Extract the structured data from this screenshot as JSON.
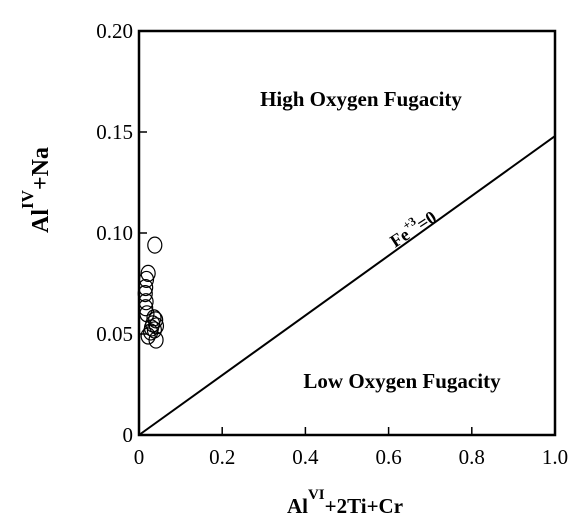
{
  "chart_data": {
    "type": "scatter",
    "xlim": [
      0,
      1.0
    ],
    "ylim": [
      0,
      0.2
    ],
    "xticks": [
      {
        "value": 0,
        "label": "0"
      },
      {
        "value": 0.2,
        "label": "0.2"
      },
      {
        "value": 0.4,
        "label": "0.4"
      },
      {
        "value": 0.6,
        "label": "0.6"
      },
      {
        "value": 0.8,
        "label": "0.8"
      },
      {
        "value": 1.0,
        "label": "1.0"
      }
    ],
    "yticks": [
      {
        "value": 0,
        "label": "0"
      },
      {
        "value": 0.05,
        "label": "0.05"
      },
      {
        "value": 0.1,
        "label": "0.10"
      },
      {
        "value": 0.15,
        "label": "0.15"
      },
      {
        "value": 0.2,
        "label": "0.20"
      }
    ],
    "xlabel": {
      "base": "Al",
      "sup": "VI",
      "rest": "+2Ti+Cr"
    },
    "ylabel": {
      "base": "Al",
      "sup": "IV",
      "rest": "+Na"
    },
    "grid": false,
    "regions": {
      "upper": "High Oxygen Fugacity",
      "lower": "Low Oxygen Fugacity"
    },
    "reference_line": {
      "x": [
        0,
        1.0
      ],
      "y": [
        0,
        0.148
      ],
      "label": {
        "base": "Fe",
        "sup": "+3",
        "rest": "=0"
      }
    },
    "points": [
      {
        "x": 0.038,
        "y": 0.094
      },
      {
        "x": 0.022,
        "y": 0.08
      },
      {
        "x": 0.018,
        "y": 0.077
      },
      {
        "x": 0.016,
        "y": 0.073
      },
      {
        "x": 0.015,
        "y": 0.07
      },
      {
        "x": 0.017,
        "y": 0.066
      },
      {
        "x": 0.016,
        "y": 0.063
      },
      {
        "x": 0.019,
        "y": 0.06
      },
      {
        "x": 0.036,
        "y": 0.058
      },
      {
        "x": 0.04,
        "y": 0.057
      },
      {
        "x": 0.033,
        "y": 0.055
      },
      {
        "x": 0.042,
        "y": 0.054
      },
      {
        "x": 0.03,
        "y": 0.053
      },
      {
        "x": 0.037,
        "y": 0.052
      },
      {
        "x": 0.028,
        "y": 0.051
      },
      {
        "x": 0.022,
        "y": 0.049
      },
      {
        "x": 0.041,
        "y": 0.047
      }
    ]
  }
}
